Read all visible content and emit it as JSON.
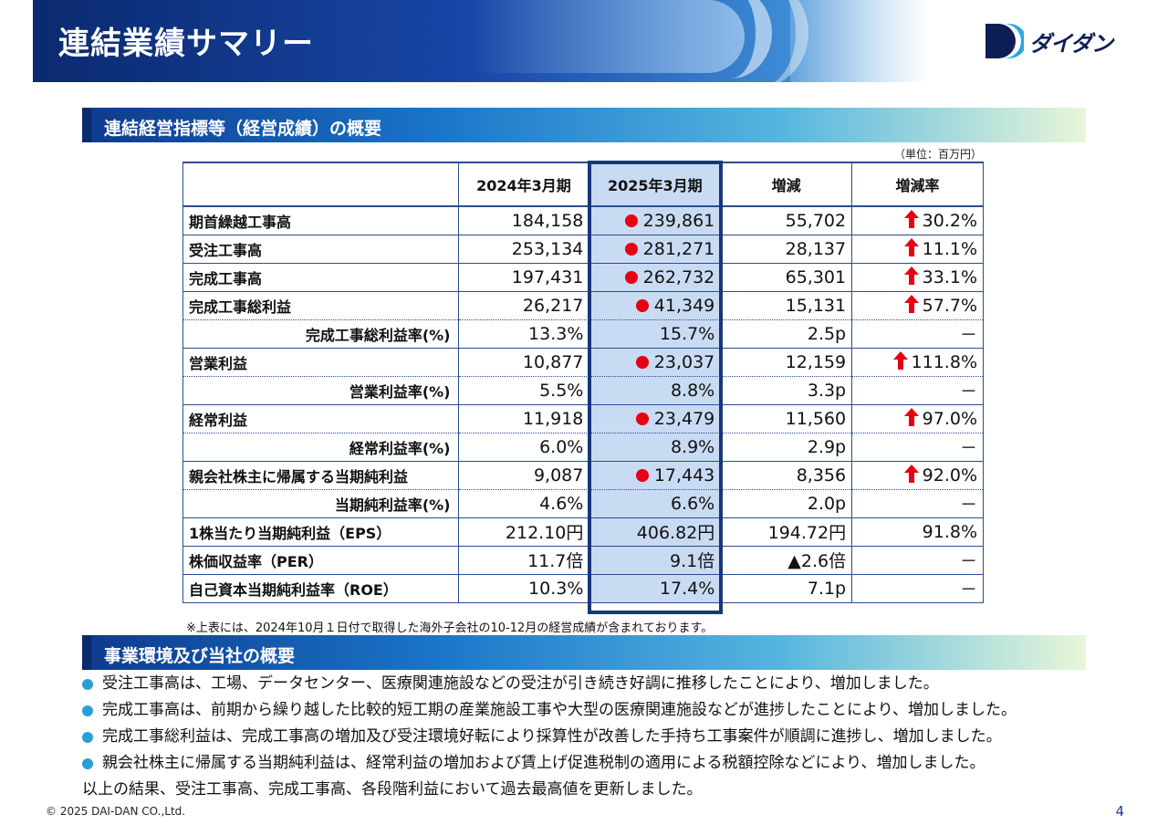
{
  "header": {
    "title": "連結業績サマリー",
    "logo_text": "ダイダン"
  },
  "section1": {
    "title": "連結経営指標等（経営成績）の概要"
  },
  "unit_note": "（単位：百万円）",
  "table": {
    "columns": [
      "",
      "2024年3月期",
      "2025年3月期",
      "増減",
      "増減率"
    ],
    "rows": [
      {
        "label": "期首繰越工事高",
        "prev": "184,158",
        "cur": "239,861",
        "diff": "55,702",
        "rate": "30.2%",
        "record": true,
        "up": true,
        "sub": false
      },
      {
        "label": "受注工事高",
        "prev": "253,134",
        "cur": "281,271",
        "diff": "28,137",
        "rate": "11.1%",
        "record": true,
        "up": true,
        "sub": false
      },
      {
        "label": "完成工事高",
        "prev": "197,431",
        "cur": "262,732",
        "diff": "65,301",
        "rate": "33.1%",
        "record": true,
        "up": true,
        "sub": false
      },
      {
        "label": "完成工事総利益",
        "prev": "26,217",
        "cur": "41,349",
        "diff": "15,131",
        "rate": "57.7%",
        "record": true,
        "up": true,
        "sub": false
      },
      {
        "label": "完成工事総利益率(%)",
        "prev": "13.3%",
        "cur": "15.7%",
        "diff": "2.5p",
        "rate": "－",
        "record": false,
        "up": false,
        "sub": true
      },
      {
        "label": "営業利益",
        "prev": "10,877",
        "cur": "23,037",
        "diff": "12,159",
        "rate": "111.8%",
        "record": true,
        "up": true,
        "sub": false
      },
      {
        "label": "営業利益率(%)",
        "prev": "5.5%",
        "cur": "8.8%",
        "diff": "3.3p",
        "rate": "－",
        "record": false,
        "up": false,
        "sub": true
      },
      {
        "label": "経常利益",
        "prev": "11,918",
        "cur": "23,479",
        "diff": "11,560",
        "rate": "97.0%",
        "record": true,
        "up": true,
        "sub": false
      },
      {
        "label": "経常利益率(%)",
        "prev": "6.0%",
        "cur": "8.9%",
        "diff": "2.9p",
        "rate": "－",
        "record": false,
        "up": false,
        "sub": true
      },
      {
        "label": "親会社株主に帰属する当期純利益",
        "prev": "9,087",
        "cur": "17,443",
        "diff": "8,356",
        "rate": "92.0%",
        "record": true,
        "up": true,
        "sub": false
      },
      {
        "label": "当期純利益率(%)",
        "prev": "4.6%",
        "cur": "6.6%",
        "diff": "2.0p",
        "rate": "－",
        "record": false,
        "up": false,
        "sub": true
      },
      {
        "label": "1株当たり当期純利益（EPS）",
        "prev": "212.10円",
        "cur": "406.82円",
        "diff": "194.72円",
        "rate": "91.8%",
        "record": false,
        "up": false,
        "sub": false
      },
      {
        "label": "株価収益率（PER）",
        "prev": "11.7倍",
        "cur": "9.1倍",
        "diff": "▲2.6倍",
        "rate": "－",
        "record": false,
        "up": false,
        "sub": false
      },
      {
        "label": "自己資本当期純利益率（ROE）",
        "prev": "10.3%",
        "cur": "17.4%",
        "diff": "7.1p",
        "rate": "－",
        "record": false,
        "up": false,
        "sub": false
      }
    ]
  },
  "footnote": "※上表には、2024年10月１日付で取得した海外子会社の10-12月の経営成績が含まれております。",
  "section2": {
    "title": "事業環境及び当社の概要"
  },
  "bullets": [
    "受注工事高は、工場、データセンター、医療関連施設などの受注が引き続き好調に推移したことにより、増加しました。",
    "完成工事高は、前期から繰り越した比較的短工期の産業施設工事や大型の医療関連施設などが進捗したことにより、増加しました。",
    "完成工事総利益は、完成工事高の増加及び受注環境好転により採算性が改善した手持ち工事案件が順調に進捗し、増加しました。",
    "親会社株主に帰属する当期純利益は、経常利益の増加および賃上げ促進税制の適用による税額控除などにより、増加しました。"
  ],
  "conclusion": "以上の結果、受注工事高、完成工事高、各段階利益において過去最高値を更新しました。",
  "footer": {
    "copyright": "© 2025 DAI-DAN CO.,Ltd.",
    "page": "4"
  },
  "colors": {
    "record_dot": "#e60012",
    "up_arrow": "#e60012",
    "highlight_col": "#c9dbf3",
    "frame": "#16387a"
  }
}
